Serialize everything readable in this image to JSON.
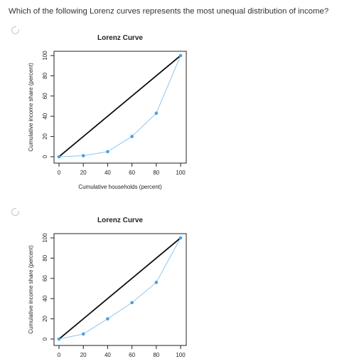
{
  "question": {
    "text": "Which of the following Lorenz curves represents the most unequal distribution of income?"
  },
  "options": [
    {
      "chart_data": {
        "type": "line",
        "title": "Lorenz Curve",
        "xlabel": "Cumulative households (percent)",
        "ylabel": "Cumulative income share (percent)",
        "xlim": [
          0,
          100
        ],
        "ylim": [
          0,
          100
        ],
        "xticks": [
          "0",
          "20",
          "40",
          "60",
          "80",
          "100"
        ],
        "yticks": [
          "0",
          "20",
          "40",
          "60",
          "80",
          "100"
        ],
        "series": [
          {
            "x": [
              0,
              100
            ],
            "y": [
              0,
              100
            ],
            "style": "equality-line",
            "color": "#111111"
          },
          {
            "x": [
              0,
              20,
              40,
              60,
              80,
              100
            ],
            "y": [
              0,
              1,
              5,
              20,
              43,
              100
            ],
            "style": "lorenz-curve",
            "color": "#4a9fe0"
          }
        ]
      }
    },
    {
      "chart_data": {
        "type": "line",
        "title": "Lorenz Curve",
        "xlabel": "",
        "ylabel": "Cumulative income share (percent)",
        "xlim": [
          0,
          100
        ],
        "ylim": [
          0,
          100
        ],
        "xticks": [
          "0",
          "20",
          "40",
          "60",
          "80",
          "100"
        ],
        "yticks": [
          "0",
          "20",
          "40",
          "60",
          "80",
          "100"
        ],
        "series": [
          {
            "x": [
              0,
              100
            ],
            "y": [
              0,
              100
            ],
            "style": "equality-line",
            "color": "#111111"
          },
          {
            "x": [
              0,
              20,
              40,
              60,
              80,
              100
            ],
            "y": [
              0,
              5,
              20,
              36,
              56,
              100
            ],
            "style": "lorenz-curve",
            "color": "#4a9fe0"
          }
        ]
      }
    }
  ]
}
